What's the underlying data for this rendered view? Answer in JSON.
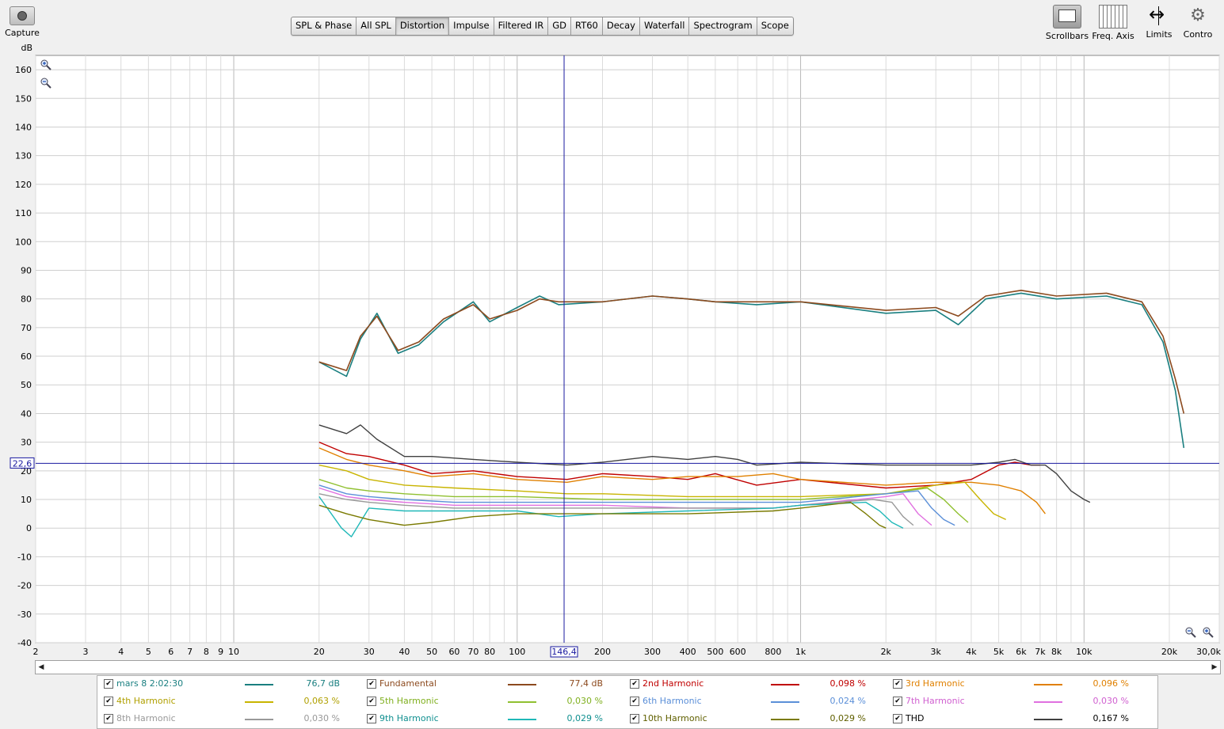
{
  "toolbar": {
    "capture_label": "Capture",
    "tabs": [
      "SPL & Phase",
      "All SPL",
      "Distortion",
      "Impulse",
      "Filtered IR",
      "GD",
      "RT60",
      "Decay",
      "Waterfall",
      "Spectrogram",
      "Scope"
    ],
    "active_tab": "Distortion",
    "right_tools": [
      "Scrollbars",
      "Freq. Axis",
      "Limits",
      "Contro"
    ]
  },
  "cursor": {
    "freq_label": "146,4",
    "level_label": "22,6"
  },
  "chart_data": {
    "type": "line",
    "ylabel": "dB",
    "xscale": "log",
    "xlim": [
      2,
      30000
    ],
    "ylim": [
      -40,
      165
    ],
    "y_ticks": [
      160,
      150,
      140,
      130,
      120,
      110,
      100,
      90,
      80,
      70,
      60,
      50,
      40,
      30,
      20,
      10,
      0,
      -10,
      -20,
      -30,
      -40
    ],
    "x_ticks": [
      {
        "v": 2,
        "t": "2"
      },
      {
        "v": 3,
        "t": "3"
      },
      {
        "v": 4,
        "t": "4"
      },
      {
        "v": 5,
        "t": "5"
      },
      {
        "v": 6,
        "t": "6"
      },
      {
        "v": 7,
        "t": "7"
      },
      {
        "v": 8,
        "t": "8"
      },
      {
        "v": 9,
        "t": "9"
      },
      {
        "v": 10,
        "t": "10"
      },
      {
        "v": 20,
        "t": "20"
      },
      {
        "v": 30,
        "t": "30"
      },
      {
        "v": 40,
        "t": "40"
      },
      {
        "v": 50,
        "t": "50"
      },
      {
        "v": 60,
        "t": "60"
      },
      {
        "v": 70,
        "t": "70"
      },
      {
        "v": 80,
        "t": "80"
      },
      {
        "v": 100,
        "t": "100"
      },
      {
        "v": 200,
        "t": "200"
      },
      {
        "v": 300,
        "t": "300"
      },
      {
        "v": 400,
        "t": "400"
      },
      {
        "v": 500,
        "t": "500"
      },
      {
        "v": 600,
        "t": "600"
      },
      {
        "v": 800,
        "t": "800"
      },
      {
        "v": 1000,
        "t": "1k"
      },
      {
        "v": 2000,
        "t": "2k"
      },
      {
        "v": 3000,
        "t": "3k"
      },
      {
        "v": 4000,
        "t": "4k"
      },
      {
        "v": 5000,
        "t": "5k"
      },
      {
        "v": 6000,
        "t": "6k"
      },
      {
        "v": 7000,
        "t": "7k"
      },
      {
        "v": 8000,
        "t": "8k"
      },
      {
        "v": 10000,
        "t": "10k"
      },
      {
        "v": 20000,
        "t": "20k"
      },
      {
        "v": 30000,
        "t": "30,0k"
      }
    ],
    "cursor_x": 146.4,
    "cursor_y": 22.6,
    "series": [
      {
        "name": "mars 8 2:02:30",
        "color": "#1a7f80",
        "points": [
          [
            20,
            58
          ],
          [
            25,
            53
          ],
          [
            28,
            66
          ],
          [
            32,
            75
          ],
          [
            38,
            61
          ],
          [
            45,
            64
          ],
          [
            55,
            72
          ],
          [
            70,
            79
          ],
          [
            80,
            72
          ],
          [
            100,
            77
          ],
          [
            120,
            81
          ],
          [
            140,
            78
          ],
          [
            200,
            79
          ],
          [
            300,
            81
          ],
          [
            400,
            80
          ],
          [
            500,
            79
          ],
          [
            700,
            78
          ],
          [
            1000,
            79
          ],
          [
            2000,
            75
          ],
          [
            3000,
            76
          ],
          [
            3600,
            71
          ],
          [
            4500,
            80
          ],
          [
            6000,
            82
          ],
          [
            8000,
            80
          ],
          [
            12000,
            81
          ],
          [
            16000,
            78
          ],
          [
            19000,
            65
          ],
          [
            21000,
            48
          ],
          [
            22500,
            28
          ]
        ]
      },
      {
        "name": "Fundamental",
        "color": "#8c4a1e",
        "points": [
          [
            20,
            58
          ],
          [
            25,
            55
          ],
          [
            28,
            67
          ],
          [
            32,
            74
          ],
          [
            38,
            62
          ],
          [
            45,
            65
          ],
          [
            55,
            73
          ],
          [
            70,
            78
          ],
          [
            80,
            73
          ],
          [
            100,
            76
          ],
          [
            120,
            80
          ],
          [
            140,
            79
          ],
          [
            200,
            79
          ],
          [
            300,
            81
          ],
          [
            400,
            80
          ],
          [
            500,
            79
          ],
          [
            700,
            79
          ],
          [
            1000,
            79
          ],
          [
            2000,
            76
          ],
          [
            3000,
            77
          ],
          [
            3600,
            74
          ],
          [
            4500,
            81
          ],
          [
            6000,
            83
          ],
          [
            8000,
            81
          ],
          [
            12000,
            82
          ],
          [
            16000,
            79
          ],
          [
            19000,
            67
          ],
          [
            21000,
            52
          ],
          [
            22500,
            40
          ]
        ]
      },
      {
        "name": "2nd Harmonic",
        "color": "#c00000",
        "points": [
          [
            20,
            30
          ],
          [
            25,
            26
          ],
          [
            30,
            25
          ],
          [
            40,
            22
          ],
          [
            50,
            19
          ],
          [
            70,
            20
          ],
          [
            100,
            18
          ],
          [
            150,
            17
          ],
          [
            200,
            19
          ],
          [
            300,
            18
          ],
          [
            400,
            17
          ],
          [
            500,
            19
          ],
          [
            700,
            15
          ],
          [
            1000,
            17
          ],
          [
            2000,
            14
          ],
          [
            3000,
            15
          ],
          [
            4000,
            17
          ],
          [
            5000,
            22
          ],
          [
            5700,
            23
          ],
          [
            6500,
            22
          ],
          [
            7000,
            22
          ]
        ]
      },
      {
        "name": "3rd Harmonic",
        "color": "#e08000",
        "points": [
          [
            20,
            28
          ],
          [
            25,
            24
          ],
          [
            30,
            22
          ],
          [
            40,
            20
          ],
          [
            50,
            18
          ],
          [
            70,
            19
          ],
          [
            100,
            17
          ],
          [
            150,
            16
          ],
          [
            200,
            18
          ],
          [
            300,
            17
          ],
          [
            400,
            18
          ],
          [
            600,
            18
          ],
          [
            800,
            19
          ],
          [
            1000,
            17
          ],
          [
            2000,
            15
          ],
          [
            3000,
            16
          ],
          [
            4000,
            16
          ],
          [
            5000,
            15
          ],
          [
            6000,
            13
          ],
          [
            6800,
            9
          ],
          [
            7300,
            5
          ]
        ]
      },
      {
        "name": "4th Harmonic",
        "color": "#c8b400",
        "points": [
          [
            20,
            22
          ],
          [
            25,
            20
          ],
          [
            30,
            17
          ],
          [
            40,
            15
          ],
          [
            60,
            14
          ],
          [
            100,
            13
          ],
          [
            150,
            12
          ],
          [
            200,
            12
          ],
          [
            400,
            11
          ],
          [
            800,
            11
          ],
          [
            1000,
            11
          ],
          [
            2000,
            12
          ],
          [
            3000,
            15
          ],
          [
            3800,
            16
          ],
          [
            4300,
            10
          ],
          [
            4800,
            5
          ],
          [
            5300,
            3
          ]
        ]
      },
      {
        "name": "5th Harmonic",
        "color": "#90c030",
        "points": [
          [
            20,
            17
          ],
          [
            25,
            14
          ],
          [
            30,
            13
          ],
          [
            40,
            12
          ],
          [
            60,
            11
          ],
          [
            100,
            11
          ],
          [
            200,
            10
          ],
          [
            400,
            10
          ],
          [
            800,
            10
          ],
          [
            1000,
            10
          ],
          [
            2000,
            12
          ],
          [
            2800,
            14
          ],
          [
            3200,
            10
          ],
          [
            3600,
            5
          ],
          [
            3900,
            2
          ]
        ]
      },
      {
        "name": "6th Harmonic",
        "color": "#5b8fd8",
        "points": [
          [
            20,
            15
          ],
          [
            25,
            12
          ],
          [
            30,
            11
          ],
          [
            40,
            10
          ],
          [
            60,
            9
          ],
          [
            100,
            9
          ],
          [
            200,
            9
          ],
          [
            400,
            9
          ],
          [
            800,
            9
          ],
          [
            1000,
            9
          ],
          [
            2000,
            12
          ],
          [
            2600,
            13
          ],
          [
            2900,
            7
          ],
          [
            3200,
            3
          ],
          [
            3500,
            1
          ]
        ]
      },
      {
        "name": "7th Harmonic",
        "color": "#e070e0",
        "points": [
          [
            20,
            14
          ],
          [
            25,
            11
          ],
          [
            30,
            10
          ],
          [
            40,
            9
          ],
          [
            60,
            8
          ],
          [
            100,
            8
          ],
          [
            200,
            8
          ],
          [
            400,
            7
          ],
          [
            800,
            7
          ],
          [
            1000,
            8
          ],
          [
            2000,
            11
          ],
          [
            2300,
            12
          ],
          [
            2600,
            5
          ],
          [
            2900,
            1
          ]
        ]
      },
      {
        "name": "8th Harmonic",
        "color": "#999999",
        "points": [
          [
            20,
            12
          ],
          [
            25,
            10
          ],
          [
            30,
            9
          ],
          [
            40,
            8
          ],
          [
            60,
            7
          ],
          [
            100,
            7
          ],
          [
            200,
            7
          ],
          [
            400,
            7
          ],
          [
            800,
            7
          ],
          [
            1000,
            8
          ],
          [
            1800,
            10
          ],
          [
            2100,
            9
          ],
          [
            2300,
            4
          ],
          [
            2500,
            1
          ]
        ]
      },
      {
        "name": "9th Harmonic",
        "color": "#20b8b8",
        "points": [
          [
            20,
            11
          ],
          [
            24,
            0
          ],
          [
            26,
            -3
          ],
          [
            30,
            7
          ],
          [
            40,
            6
          ],
          [
            60,
            6
          ],
          [
            100,
            6
          ],
          [
            140,
            4
          ],
          [
            200,
            5
          ],
          [
            400,
            6
          ],
          [
            800,
            7
          ],
          [
            1000,
            8
          ],
          [
            1700,
            9
          ],
          [
            1900,
            6
          ],
          [
            2100,
            2
          ],
          [
            2300,
            0
          ]
        ]
      },
      {
        "name": "10th Harmonic",
        "color": "#7a7a00",
        "points": [
          [
            20,
            8
          ],
          [
            25,
            5
          ],
          [
            30,
            3
          ],
          [
            40,
            1
          ],
          [
            50,
            2
          ],
          [
            70,
            4
          ],
          [
            100,
            5
          ],
          [
            200,
            5
          ],
          [
            400,
            5
          ],
          [
            800,
            6
          ],
          [
            1000,
            7
          ],
          [
            1500,
            9
          ],
          [
            1700,
            5
          ],
          [
            1900,
            1
          ],
          [
            2000,
            0
          ]
        ]
      },
      {
        "name": "THD",
        "color": "#404040",
        "points": [
          [
            20,
            36
          ],
          [
            25,
            33
          ],
          [
            28,
            36
          ],
          [
            32,
            31
          ],
          [
            40,
            25
          ],
          [
            50,
            25
          ],
          [
            70,
            24
          ],
          [
            100,
            23
          ],
          [
            150,
            22
          ],
          [
            200,
            23
          ],
          [
            300,
            25
          ],
          [
            400,
            24
          ],
          [
            500,
            25
          ],
          [
            600,
            24
          ],
          [
            700,
            22
          ],
          [
            1000,
            23
          ],
          [
            2000,
            22
          ],
          [
            3000,
            22
          ],
          [
            4000,
            22
          ],
          [
            5000,
            23
          ],
          [
            5700,
            24
          ],
          [
            6500,
            22
          ],
          [
            7300,
            22
          ],
          [
            8000,
            19
          ],
          [
            9000,
            13
          ],
          [
            10000,
            10
          ],
          [
            10500,
            9
          ]
        ]
      }
    ]
  },
  "legend": [
    {
      "name": "mars 8 2:02:30",
      "value": "76,7 dB",
      "color": "#1a7f80",
      "name_color": "#1a7f80",
      "value_color": "#1a7f80",
      "checked": true
    },
    {
      "name": "Fundamental",
      "value": "77,4 dB",
      "color": "#8c4a1e",
      "name_color": "#8c4a1e",
      "value_color": "#8c4a1e",
      "checked": true
    },
    {
      "name": "2nd Harmonic",
      "value": "0,098 %",
      "color": "#c00000",
      "name_color": "#c00000",
      "value_color": "#c00000",
      "checked": true
    },
    {
      "name": "3rd Harmonic",
      "value": "0,096 %",
      "color": "#e08000",
      "name_color": "#e08000",
      "value_color": "#e08000",
      "checked": true
    },
    {
      "name": "4th Harmonic",
      "value": "0,063 %",
      "color": "#c8b400",
      "name_color": "#b0a000",
      "value_color": "#b0a000",
      "checked": true
    },
    {
      "name": "5th Harmonic",
      "value": "0,030 %",
      "color": "#90c030",
      "name_color": "#80b020",
      "value_color": "#80b020",
      "checked": true
    },
    {
      "name": "6th Harmonic",
      "value": "0,024 %",
      "color": "#5b8fd8",
      "name_color": "#5b8fd8",
      "value_color": "#5b8fd8",
      "checked": true
    },
    {
      "name": "7th Harmonic",
      "value": "0,030 %",
      "color": "#e070e0",
      "name_color": "#d060d0",
      "value_color": "#d060d0",
      "checked": true
    },
    {
      "name": "8th Harmonic",
      "value": "0,030 %",
      "color": "#999999",
      "name_color": "#999999",
      "value_color": "#999999",
      "checked": true
    },
    {
      "name": "9th Harmonic",
      "value": "0,029 %",
      "color": "#20b8b8",
      "name_color": "#109090",
      "value_color": "#109090",
      "checked": true
    },
    {
      "name": "10th Harmonic",
      "value": "0,029 %",
      "color": "#7a7a00",
      "name_color": "#606000",
      "value_color": "#606000",
      "checked": true
    },
    {
      "name": "THD",
      "value": "0,167 %",
      "color": "#404040",
      "name_color": "#000000",
      "value_color": "#000000",
      "checked": true
    }
  ]
}
